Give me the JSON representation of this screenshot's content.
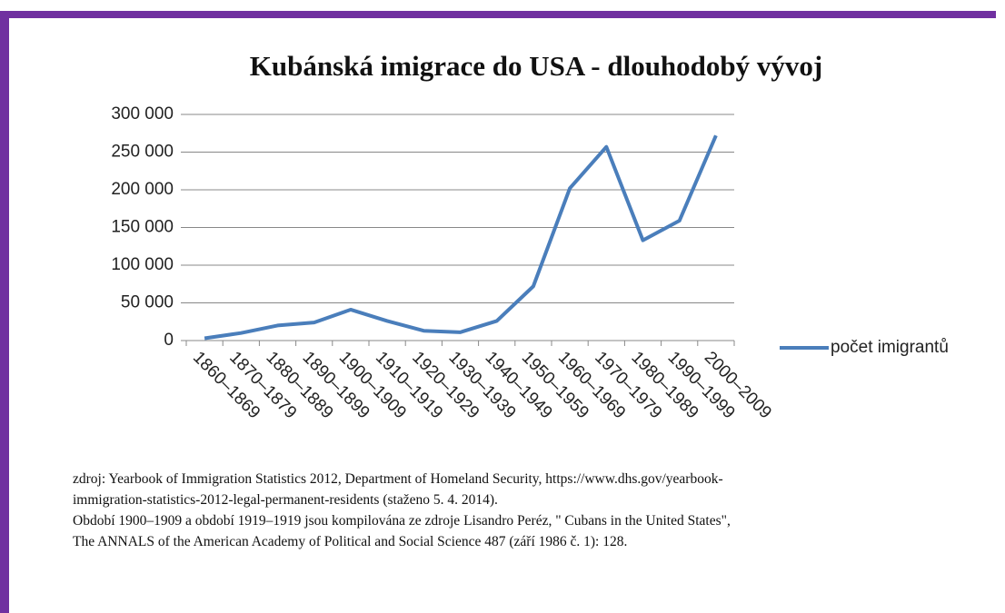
{
  "chart_data": {
    "type": "line",
    "title": "Kubánská imigrace do USA - dlouhodobý vývoj",
    "categories": [
      "1860–1869",
      "1870–1879",
      "1880–1889",
      "1890–1899",
      "1900–1909",
      "1910–1919",
      "1920–1929",
      "1930–1939",
      "1940–1949",
      "1950–1959",
      "1960–1969",
      "1970–1979",
      "1980–1989",
      "1990–1999",
      "2000–2009"
    ],
    "series": [
      {
        "name": "počet imigrantů",
        "color": "#4a7ebb",
        "values": [
          3000,
          10000,
          20000,
          24000,
          41000,
          26000,
          13000,
          11000,
          26000,
          72000,
          202000,
          257000,
          133000,
          159000,
          272000
        ]
      }
    ],
    "ylim": [
      0,
      300000
    ],
    "yticks": [
      0,
      {
        "value": 50000,
        "label": "50 000"
      },
      {
        "value": 100000,
        "label": "100 000"
      },
      {
        "value": 150000,
        "label": "150 000"
      },
      {
        "value": 200000,
        "label": "200 000"
      },
      {
        "value": 250000,
        "label": "250 000"
      },
      {
        "value": 300000,
        "label": "300 000"
      }
    ],
    "grid": true,
    "legend": "right"
  },
  "notes": [
    "zdroj:  Yearbook of Immigration Statistics 2012, Department of Homeland Security, https://www.dhs.gov/yearbook-",
    "immigration-statistics-2012-legal-permanent-residents (staženo  5. 4. 2014).",
    "Období 1900–1909 a období 1919–1919 jsou kompilována ze zdroje Lisandro Peréz, \" Cubans in the United States\",",
    "The ANNALS of the American Academy of Political and Social Science 487 (září 1986 č. 1): 128."
  ]
}
